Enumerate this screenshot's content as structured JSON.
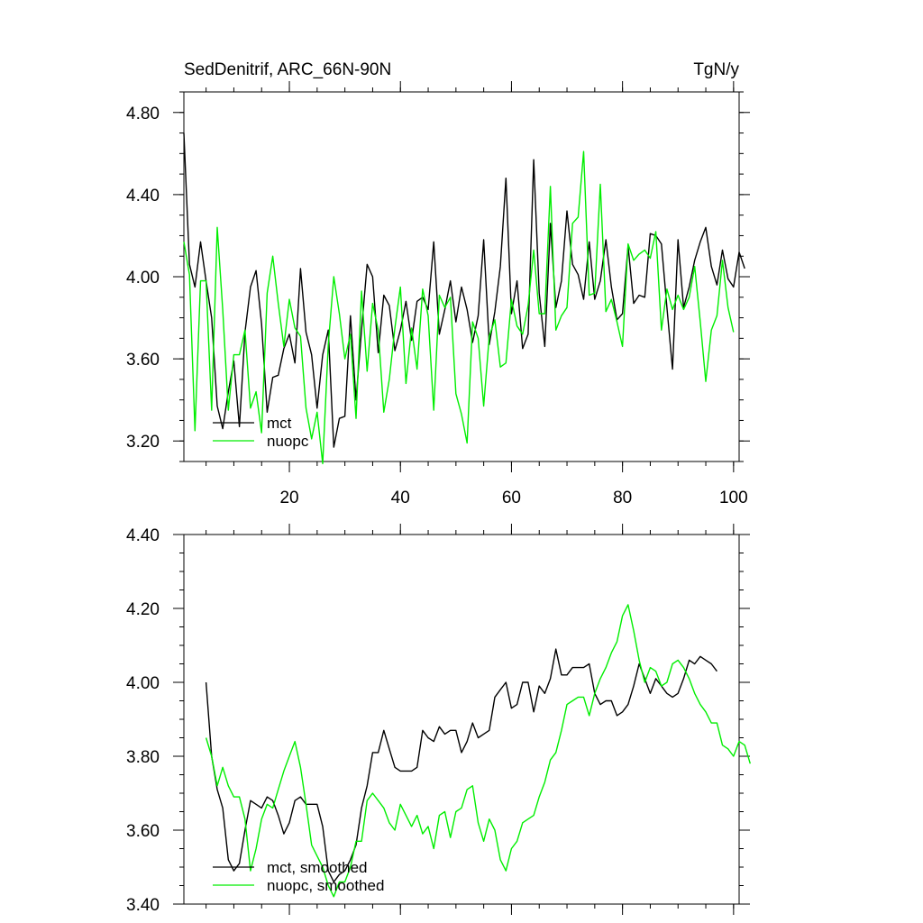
{
  "chart_data": [
    {
      "type": "line",
      "title": "SedDenitrif, ARC_66N-90N",
      "units": "TgN/y",
      "xlim": [
        1,
        101
      ],
      "ylim": [
        3.1,
        4.9
      ],
      "xticks": [
        20,
        40,
        60,
        80,
        100
      ],
      "yticks": [
        3.2,
        3.6,
        4.0,
        4.4,
        4.8
      ],
      "ytick_labels": [
        "3.20",
        "3.60",
        "4.00",
        "4.40",
        "4.80"
      ],
      "legend_position": "bottom-left",
      "series": [
        {
          "name": "mct",
          "color": "#000000",
          "values": [
            4.7,
            4.06,
            3.95,
            4.17,
            3.98,
            3.8,
            3.37,
            3.26,
            3.44,
            3.59,
            3.27,
            3.73,
            3.95,
            4.03,
            3.77,
            3.34,
            3.51,
            3.52,
            3.65,
            3.72,
            3.58,
            4.04,
            3.73,
            3.62,
            3.36,
            3.62,
            3.74,
            3.17,
            3.31,
            3.32,
            3.81,
            3.4,
            3.74,
            4.06,
            4.0,
            3.63,
            3.91,
            3.86,
            3.64,
            3.74,
            3.88,
            3.69,
            3.88,
            3.9,
            3.84,
            4.17,
            3.72,
            3.84,
            3.98,
            3.78,
            3.95,
            3.84,
            3.68,
            3.81,
            4.18,
            3.67,
            3.83,
            4.05,
            4.48,
            3.82,
            3.98,
            3.65,
            3.72,
            4.57,
            3.92,
            3.66,
            4.26,
            3.85,
            3.98,
            4.32,
            4.06,
            4.01,
            3.89,
            4.17,
            3.89,
            3.98,
            4.18,
            3.95,
            3.79,
            3.82,
            4.15,
            3.87,
            3.91,
            3.9,
            4.21,
            4.2,
            4.16,
            3.85,
            3.55,
            4.18,
            3.85,
            3.95,
            4.08,
            4.17,
            4.24,
            4.05,
            3.96,
            4.13,
            3.99,
            3.95,
            4.12,
            4.04
          ]
        },
        {
          "name": "nuopc",
          "color": "#00ee00",
          "values": [
            4.17,
            4.01,
            3.25,
            3.98,
            3.98,
            3.35,
            4.24,
            3.84,
            3.35,
            3.62,
            3.62,
            3.74,
            3.36,
            3.44,
            3.24,
            3.92,
            4.1,
            3.87,
            3.66,
            3.89,
            3.75,
            3.71,
            3.36,
            3.21,
            3.34,
            3.09,
            3.67,
            4.0,
            3.82,
            3.6,
            3.72,
            3.31,
            3.93,
            3.54,
            3.87,
            3.74,
            3.34,
            3.5,
            3.75,
            3.95,
            3.48,
            3.75,
            3.55,
            3.94,
            3.81,
            3.35,
            3.91,
            3.85,
            3.9,
            3.43,
            3.33,
            3.19,
            3.78,
            3.7,
            3.37,
            3.71,
            3.79,
            3.56,
            3.58,
            3.89,
            3.76,
            3.72,
            3.86,
            4.13,
            3.82,
            3.82,
            4.44,
            3.74,
            3.81,
            3.85,
            4.26,
            4.29,
            4.61,
            3.91,
            3.92,
            4.45,
            3.83,
            3.89,
            3.78,
            3.66,
            4.16,
            4.08,
            4.11,
            4.13,
            4.09,
            4.22,
            3.74,
            3.94,
            3.84,
            3.91,
            3.84,
            3.9,
            4.05,
            3.78,
            3.49,
            3.74,
            3.81,
            4.08,
            3.85,
            3.73
          ]
        }
      ]
    },
    {
      "type": "line",
      "xlim": [
        1,
        101
      ],
      "ylim": [
        3.4,
        4.4
      ],
      "xticks": [
        20,
        40,
        60,
        80,
        100
      ],
      "yticks": [
        3.4,
        3.6,
        3.8,
        4.0,
        4.2,
        4.4
      ],
      "ytick_labels": [
        "3.40",
        "3.60",
        "3.80",
        "4.00",
        "4.20",
        "4.40"
      ],
      "legend_position": "bottom-left",
      "series": [
        {
          "name": "mct, smoothed",
          "color": "#000000",
          "x_start": 5,
          "values": [
            4.0,
            3.8,
            3.71,
            3.66,
            3.52,
            3.49,
            3.51,
            3.6,
            3.68,
            3.67,
            3.66,
            3.69,
            3.68,
            3.64,
            3.59,
            3.62,
            3.68,
            3.69,
            3.67,
            3.67,
            3.67,
            3.61,
            3.49,
            3.46,
            3.48,
            3.49,
            3.52,
            3.56,
            3.66,
            3.72,
            3.81,
            3.81,
            3.87,
            3.82,
            3.77,
            3.76,
            3.76,
            3.76,
            3.77,
            3.87,
            3.85,
            3.84,
            3.88,
            3.86,
            3.87,
            3.87,
            3.81,
            3.84,
            3.89,
            3.85,
            3.86,
            3.87,
            3.96,
            3.98,
            4.0,
            3.93,
            3.94,
            4.0,
            4.0,
            3.92,
            3.99,
            3.97,
            4.01,
            4.09,
            4.02,
            4.02,
            4.04,
            4.04,
            4.04,
            4.05,
            3.97,
            3.94,
            3.95,
            3.95,
            3.91,
            3.92,
            3.94,
            3.99,
            4.05,
            4.01,
            3.97,
            4.01,
            3.99,
            3.97,
            3.96,
            3.97,
            4.01,
            4.06,
            4.05,
            4.07,
            4.06,
            4.05,
            4.03
          ]
        },
        {
          "name": "nuopc, smoothed",
          "color": "#00ee00",
          "x_start": 5,
          "values": [
            3.85,
            3.8,
            3.72,
            3.77,
            3.72,
            3.69,
            3.69,
            3.63,
            3.49,
            3.55,
            3.63,
            3.67,
            3.66,
            3.71,
            3.76,
            3.8,
            3.84,
            3.77,
            3.67,
            3.56,
            3.53,
            3.5,
            3.45,
            3.42,
            3.46,
            3.46,
            3.5,
            3.57,
            3.57,
            3.68,
            3.7,
            3.68,
            3.66,
            3.62,
            3.6,
            3.67,
            3.64,
            3.61,
            3.64,
            3.59,
            3.61,
            3.55,
            3.64,
            3.65,
            3.58,
            3.65,
            3.66,
            3.71,
            3.72,
            3.62,
            3.57,
            3.63,
            3.6,
            3.52,
            3.49,
            3.55,
            3.57,
            3.62,
            3.63,
            3.64,
            3.69,
            3.73,
            3.79,
            3.81,
            3.87,
            3.94,
            3.95,
            3.96,
            3.96,
            3.91,
            3.97,
            4.01,
            4.04,
            4.08,
            4.11,
            4.18,
            4.21,
            4.14,
            4.06,
            4.0,
            4.04,
            4.03,
            3.99,
            4.0,
            4.05,
            4.06,
            4.04,
            4.01,
            3.97,
            3.94,
            3.92,
            3.89,
            3.89,
            3.83,
            3.82,
            3.8,
            3.84,
            3.83,
            3.78
          ]
        }
      ]
    }
  ]
}
